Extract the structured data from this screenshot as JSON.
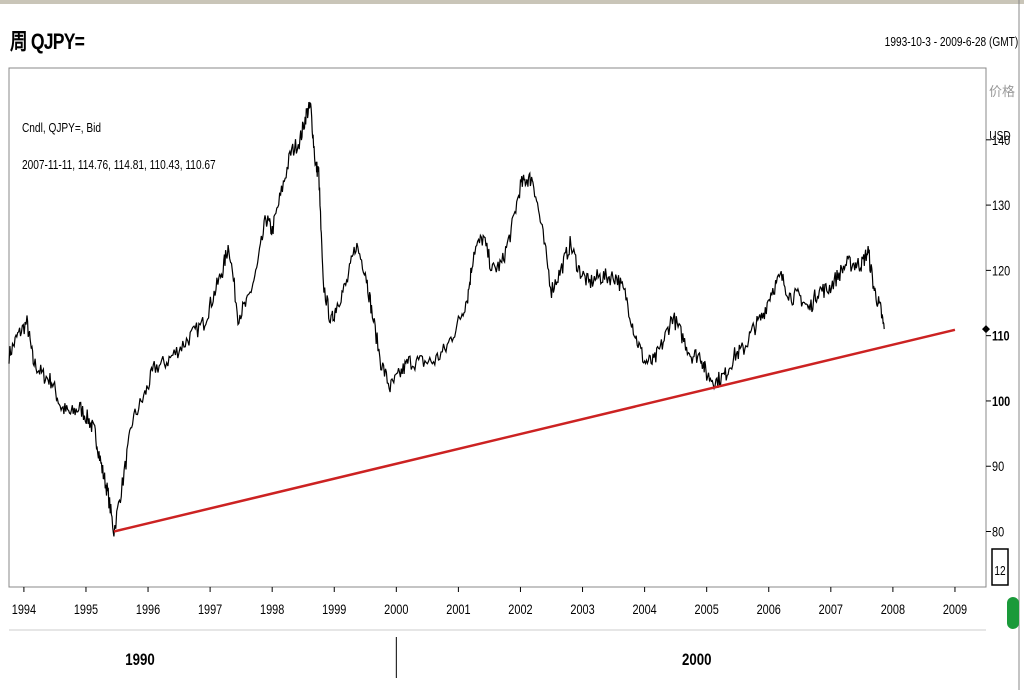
{
  "header": {
    "title": "周 QJPY=",
    "range": "1993-10-3 - 2009-6-28 (GMT)"
  },
  "chart_data": {
    "type": "line",
    "legend": {
      "line1": "Cndl, QJPY=, Bid",
      "line2": "2007-11-11, 114.76, 114.81, 110.43, 110.67"
    },
    "y_axis": {
      "title1": "价格",
      "title2": "USD",
      "ticks": [
        140,
        130,
        120,
        110,
        100,
        90,
        80
      ],
      "ticks_bold": [
        110,
        100
      ],
      "ylim": [
        71.5,
        151
      ],
      "extra_label": "12"
    },
    "x_axis": {
      "ticks": [
        "1994",
        "1995",
        "1996",
        "1997",
        "1998",
        "1999",
        "2000",
        "2001",
        "2002",
        "2003",
        "2004",
        "2005",
        "2006",
        "2007",
        "2008",
        "2009"
      ],
      "xlim": [
        1993.76,
        2009.5
      ],
      "decades": [
        {
          "label": "1990",
          "x": 1995.87
        },
        {
          "label": "2000",
          "x": 2004.84
        }
      ],
      "decade_divider": 2000
    },
    "series": [
      {
        "color": "#000000",
        "x": [
          1993.76,
          1993.9,
          1994.05,
          1994.15,
          1994.3,
          1994.45,
          1994.6,
          1994.75,
          1994.9,
          1995.05,
          1995.15,
          1995.25,
          1995.35,
          1995.45,
          1995.6,
          1995.75,
          1995.95,
          1996.1,
          1996.3,
          1996.5,
          1996.7,
          1996.9,
          1997.05,
          1997.2,
          1997.3,
          1997.45,
          1997.6,
          1997.75,
          1997.9,
          1998.0,
          1998.15,
          1998.3,
          1998.45,
          1998.55,
          1998.62,
          1998.7,
          1998.75,
          1998.82,
          1998.95,
          1999.05,
          1999.2,
          1999.35,
          1999.5,
          1999.6,
          1999.75,
          1999.9,
          2000.05,
          2000.2,
          2000.4,
          2000.6,
          2000.8,
          2001.0,
          2001.15,
          2001.25,
          2001.4,
          2001.55,
          2001.7,
          2001.85,
          2002.0,
          2002.1,
          2002.2,
          2002.35,
          2002.5,
          2002.65,
          2002.8,
          2002.95,
          2003.1,
          2003.25,
          2003.4,
          2003.55,
          2003.7,
          2003.85,
          2004.0,
          2004.15,
          2004.3,
          2004.45,
          2004.6,
          2004.75,
          2004.9,
          2005.0,
          2005.15,
          2005.3,
          2005.45,
          2005.6,
          2005.75,
          2005.9,
          2006.05,
          2006.2,
          2006.35,
          2006.5,
          2006.65,
          2006.8,
          2006.95,
          2007.1,
          2007.25,
          2007.4,
          2007.5,
          2007.6,
          2007.7,
          2007.8,
          2007.86
        ],
        "y": [
          107,
          110,
          112,
          106,
          104,
          103,
          99,
          98,
          99,
          97,
          95,
          90,
          86,
          80,
          88,
          97,
          101,
          105,
          106,
          108,
          110,
          112,
          116,
          120,
          124,
          113,
          115,
          120,
          128,
          126,
          132,
          138,
          140,
          144,
          145,
          136,
          135,
          118,
          112,
          115,
          118,
          124,
          120,
          114,
          106,
          102,
          104,
          106,
          106,
          106,
          108,
          112,
          116,
          123,
          125,
          120,
          121,
          126,
          133,
          134,
          134,
          126,
          117,
          120,
          124,
          120,
          118,
          119,
          119,
          119,
          116,
          110,
          106,
          106,
          109,
          113,
          110,
          107,
          107,
          104,
          103,
          104,
          107,
          108,
          111,
          113,
          117,
          119,
          116,
          116,
          114,
          117,
          117,
          119,
          121,
          121,
          121,
          123,
          117,
          114,
          111
        ]
      },
      {
        "color": "#cc2222",
        "x": [
          1995.45,
          2009.0
        ],
        "y": [
          80,
          110.9
        ]
      }
    ]
  }
}
